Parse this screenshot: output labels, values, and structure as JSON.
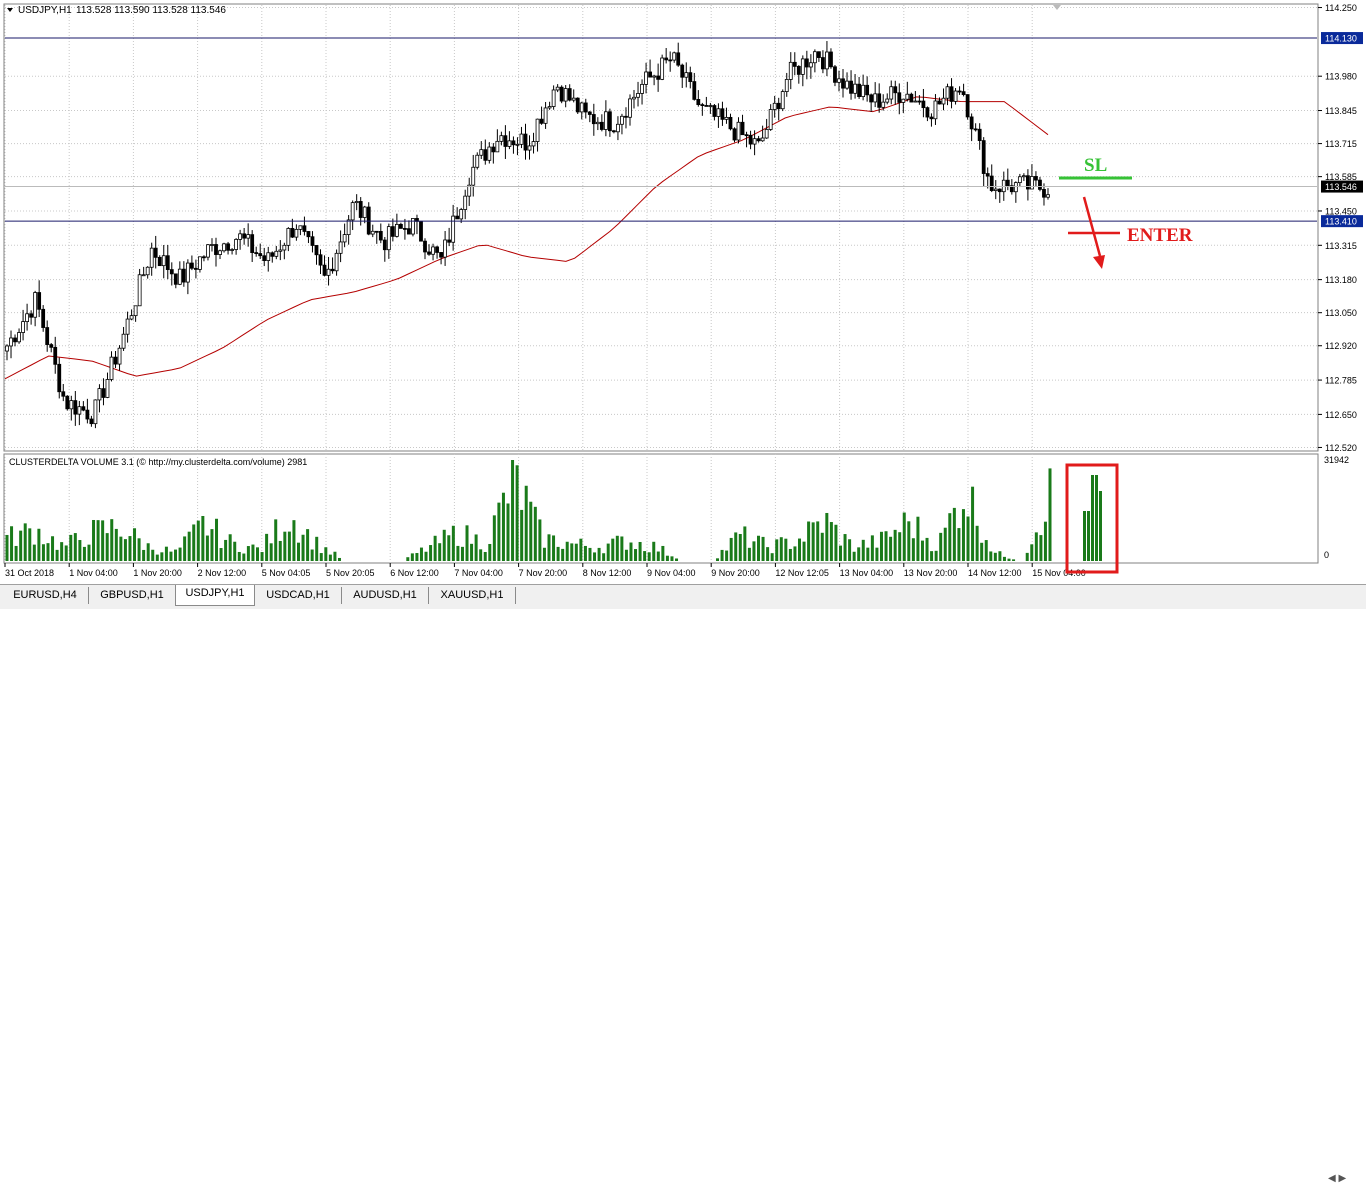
{
  "header": {
    "symbol": "USDJPY,H1",
    "ohlc": "113.528 113.590 113.528 113.546"
  },
  "indicator": {
    "title": "CLUSTERDELTA VOLUME 3.1 (© http://my.clusterdelta.com/volume) 2981",
    "max_label": "31942",
    "zero_label": "0"
  },
  "annotations": {
    "sl": "SL",
    "enter": "ENTER"
  },
  "colors": {
    "grid": "#c8c8c8",
    "candle": "#000000",
    "ma": "#b40000",
    "volume": "#1a7a1a",
    "sl": "#36c236",
    "enter": "#e11b1b",
    "level_tag_bg": "#0a2a9a",
    "price_tag_bg": "#000000"
  },
  "tabs": [
    "EURUSD,H4",
    "GBPUSD,H1",
    "USDJPY,H1",
    "USDCAD,H1",
    "AUDUSD,H1",
    "XAUUSD,H1"
  ],
  "active_tab": "USDJPY,H1",
  "chart_data": {
    "type": "candlestick",
    "price_axis": [
      "114.250",
      "113.980",
      "113.845",
      "113.715",
      "113.585",
      "113.450",
      "113.315",
      "113.180",
      "113.050",
      "112.920",
      "112.785",
      "112.650",
      "112.520"
    ],
    "ylim": [
      112.51,
      114.26
    ],
    "level_tags": [
      "114.130",
      "113.546",
      "113.410"
    ],
    "horizontal_levels": [
      114.13,
      113.41
    ],
    "current_price": 113.546,
    "time_labels": [
      "31 Oct 2018",
      "1 Nov 04:00",
      "1 Nov 20:00",
      "2 Nov 12:00",
      "5 Nov 04:05",
      "5 Nov 20:05",
      "6 Nov 12:00",
      "7 Nov 04:00",
      "7 Nov 20:00",
      "8 Nov 12:00",
      "9 Nov 04:00",
      "9 Nov 20:00",
      "12 Nov 12:05",
      "13 Nov 04:00",
      "13 Nov 20:00",
      "14 Nov 12:00",
      "15 Nov 04:00"
    ],
    "close_anchors": [
      112.92,
      113.1,
      112.7,
      112.65,
      112.95,
      113.3,
      113.18,
      113.3,
      113.35,
      113.25,
      113.4,
      113.18,
      113.48,
      113.33,
      113.4,
      113.25,
      113.6,
      113.75,
      113.72,
      113.95,
      113.82,
      113.8,
      113.95,
      114.05,
      113.85,
      113.78,
      113.7,
      113.98,
      114.08,
      113.95,
      113.88,
      113.92,
      113.85,
      113.95,
      113.55,
      113.55,
      113.54
    ],
    "ma_anchors": [
      112.79,
      112.88,
      112.86,
      112.8,
      112.83,
      112.91,
      113.02,
      113.1,
      113.13,
      113.18,
      113.26,
      113.32,
      113.27,
      113.25,
      113.38,
      113.55,
      113.67,
      113.73,
      113.82,
      113.86,
      113.84,
      113.9,
      113.88,
      113.88,
      113.75
    ],
    "volume_max": 31942,
    "volume_anchors": [
      8000,
      11000,
      5000,
      10000,
      12000,
      5000,
      3000,
      13000,
      6000,
      4000,
      16000,
      6000,
      0,
      0,
      0,
      5000,
      10000,
      6000,
      29000,
      8000,
      6000,
      5000,
      7000,
      5000,
      0,
      0,
      9000,
      5000,
      7000,
      14000,
      5000,
      7000,
      14000,
      5000,
      25000,
      3000,
      0,
      24000
    ]
  }
}
